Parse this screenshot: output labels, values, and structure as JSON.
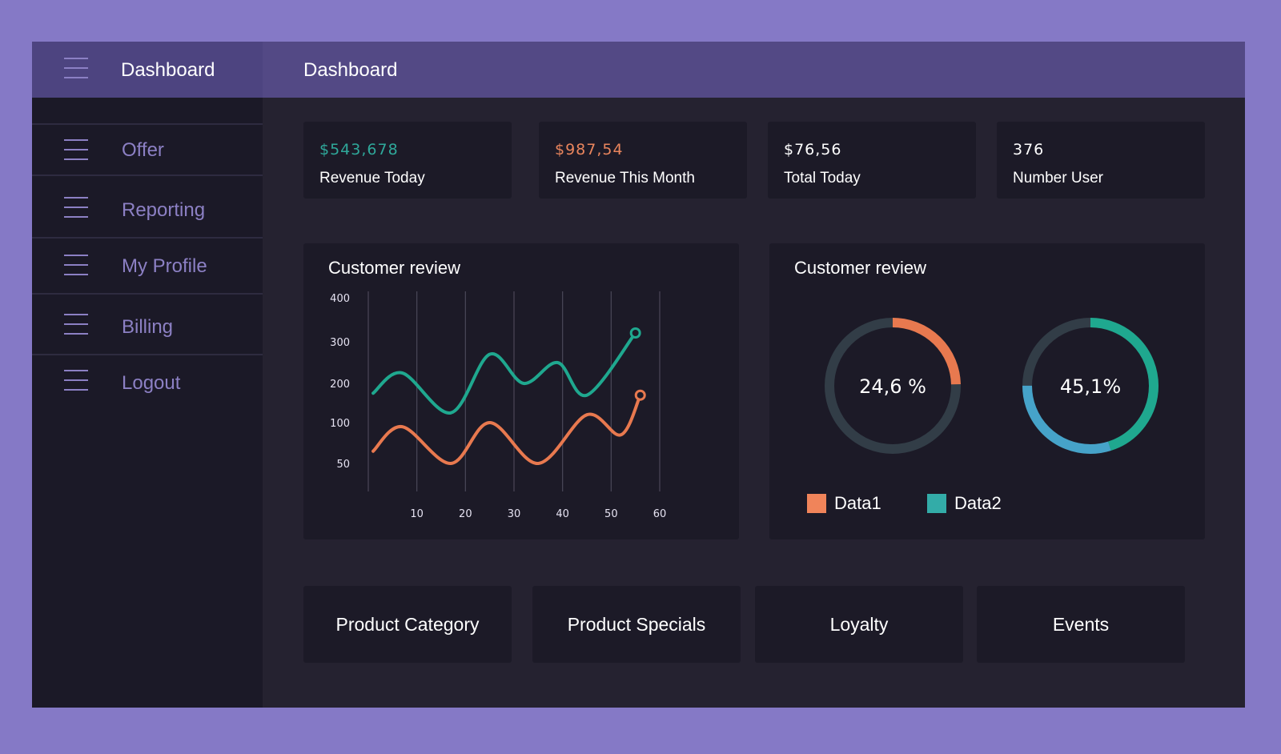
{
  "header": {
    "brand_title": "Dashboard",
    "page_title": "Dashboard"
  },
  "sidebar": {
    "items": [
      {
        "label": "Offer",
        "icon": "menu-icon"
      },
      {
        "label": "Reporting",
        "icon": "menu-icon"
      },
      {
        "label": "My Profile",
        "icon": "menu-icon"
      },
      {
        "label": "Billing",
        "icon": "menu-icon"
      },
      {
        "label": "Logout",
        "icon": "menu-icon"
      }
    ]
  },
  "stats": [
    {
      "value": "$543,678",
      "label": "Revenue Today",
      "color": "#2fa89a"
    },
    {
      "value": "$987,54",
      "label": "Revenue This Month",
      "color": "#e9855d"
    },
    {
      "value": "$76,56",
      "label": "Total Today",
      "color": "#ffffff"
    },
    {
      "value": "376",
      "label": "Number User",
      "color": "#ffffff"
    }
  ],
  "line_panel": {
    "title": "Customer review"
  },
  "donut_panel": {
    "title": "Customer review",
    "legend": [
      {
        "label": "Data1",
        "color": "#f0845a"
      },
      {
        "label": "Data2",
        "color": "#33aca8"
      }
    ]
  },
  "buttons": {
    "product_category": "Product Category",
    "product_specials": "Product Specials",
    "loyalty": "Loyalty",
    "events": "Events"
  },
  "colors": {
    "teal": "#1fa88f",
    "orange": "#e8794f",
    "blue": "#46a3c9",
    "track": "#323d47"
  },
  "chart_data": [
    {
      "type": "line",
      "title": "Customer review",
      "x_ticks": [
        10,
        20,
        30,
        40,
        50,
        60
      ],
      "y_ticks": [
        50,
        100,
        200,
        300,
        400
      ],
      "xlim": [
        0,
        60
      ],
      "grid": "vertical",
      "series": [
        {
          "color": "#1fa88f",
          "x": [
            1,
            7,
            17,
            25,
            32,
            39,
            45,
            55
          ],
          "y": [
            175,
            225,
            125,
            270,
            200,
            250,
            170,
            320
          ]
        },
        {
          "color": "#e8794f",
          "x": [
            1,
            7,
            17,
            25,
            35,
            45,
            52,
            56
          ],
          "y": [
            65,
            95,
            50,
            100,
            50,
            120,
            85,
            170
          ]
        }
      ]
    },
    {
      "type": "pie",
      "title": "Customer review",
      "donuts": [
        {
          "label": "24,6 %",
          "value": 24.6,
          "color": "#e8794f"
        },
        {
          "label": "45,1%",
          "value": 45.1,
          "color": "#1fa88f",
          "second_color": "#46a3c9",
          "second_value": 29.9
        }
      ]
    }
  ]
}
